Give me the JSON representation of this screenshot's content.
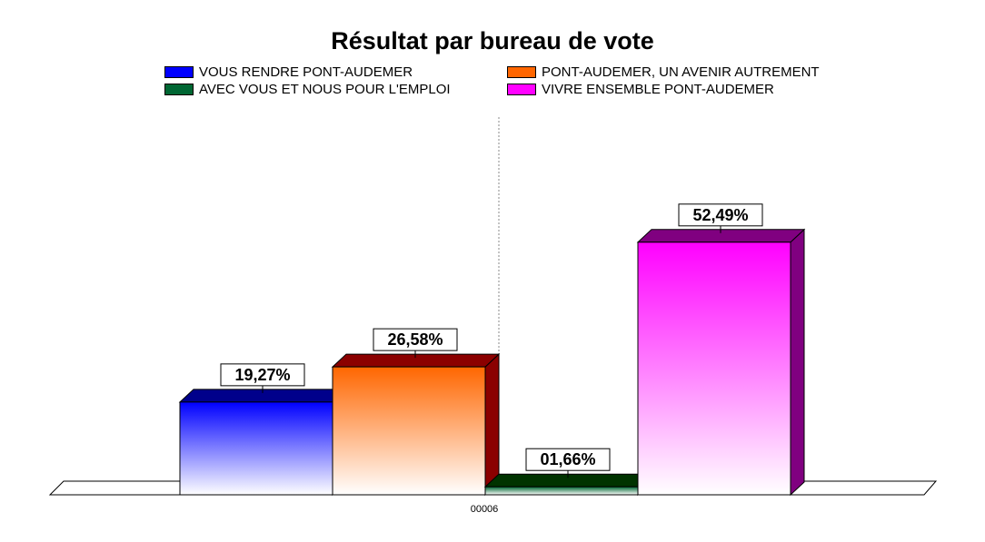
{
  "chart_data": {
    "type": "bar",
    "title": "Résultat par bureau de vote",
    "categories": [
      "00006"
    ],
    "series": [
      {
        "name": "VOUS RENDRE PONT-AUDEMER",
        "values": [
          19.27
        ],
        "label": "19,27%",
        "color": "#0000ff",
        "side_color": "#00008b"
      },
      {
        "name": "PONT-AUDEMER, UN AVENIR AUTREMENT",
        "values": [
          26.58
        ],
        "label": "26,58%",
        "color": "#ff6600",
        "side_color": "#8b0000"
      },
      {
        "name": "AVEC VOUS ET NOUS POUR L'EMPLOI",
        "values": [
          1.66
        ],
        "label": "01,66%",
        "color": "#006633",
        "side_color": "#003300"
      },
      {
        "name": "VIVRE ENSEMBLE PONT-AUDEMER",
        "values": [
          52.49
        ],
        "label": "52,49%",
        "color": "#ff00ff",
        "side_color": "#800080"
      }
    ],
    "legend_position": "top",
    "grid": false
  }
}
